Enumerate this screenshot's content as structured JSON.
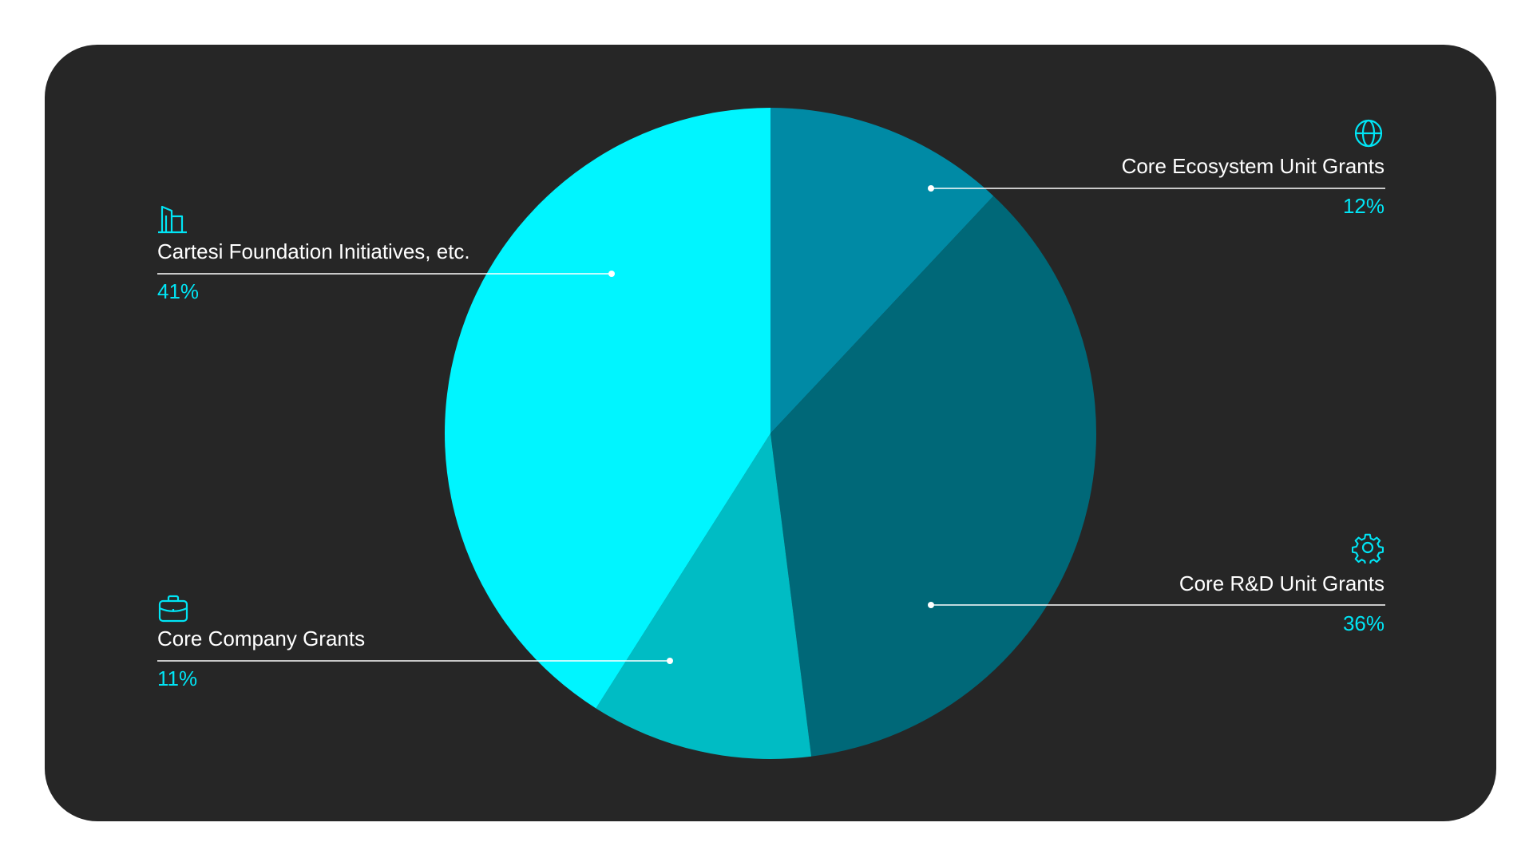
{
  "chart_data": {
    "type": "pie",
    "title": "",
    "slices": [
      {
        "label": "Core Ecosystem Unit Grants",
        "value": 12,
        "display": "12%",
        "color": "#008aa5",
        "icon": "globe-icon"
      },
      {
        "label": "Core R&D Unit Grants",
        "value": 36,
        "display": "36%",
        "color": "#006878",
        "icon": "gear-icon"
      },
      {
        "label": "Core Company Grants",
        "value": 11,
        "display": "11%",
        "color": "#00bcc4",
        "icon": "briefcase-icon"
      },
      {
        "label": "Cartesi Foundation Initiatives, etc.",
        "value": 41,
        "display": "41%",
        "color": "#00f5ff",
        "icon": "building-icon"
      }
    ]
  },
  "colors": {
    "card_background": "#262626",
    "label_text": "#ffffff",
    "accent": "#00e5f5",
    "leader_line": "#ffffff"
  }
}
